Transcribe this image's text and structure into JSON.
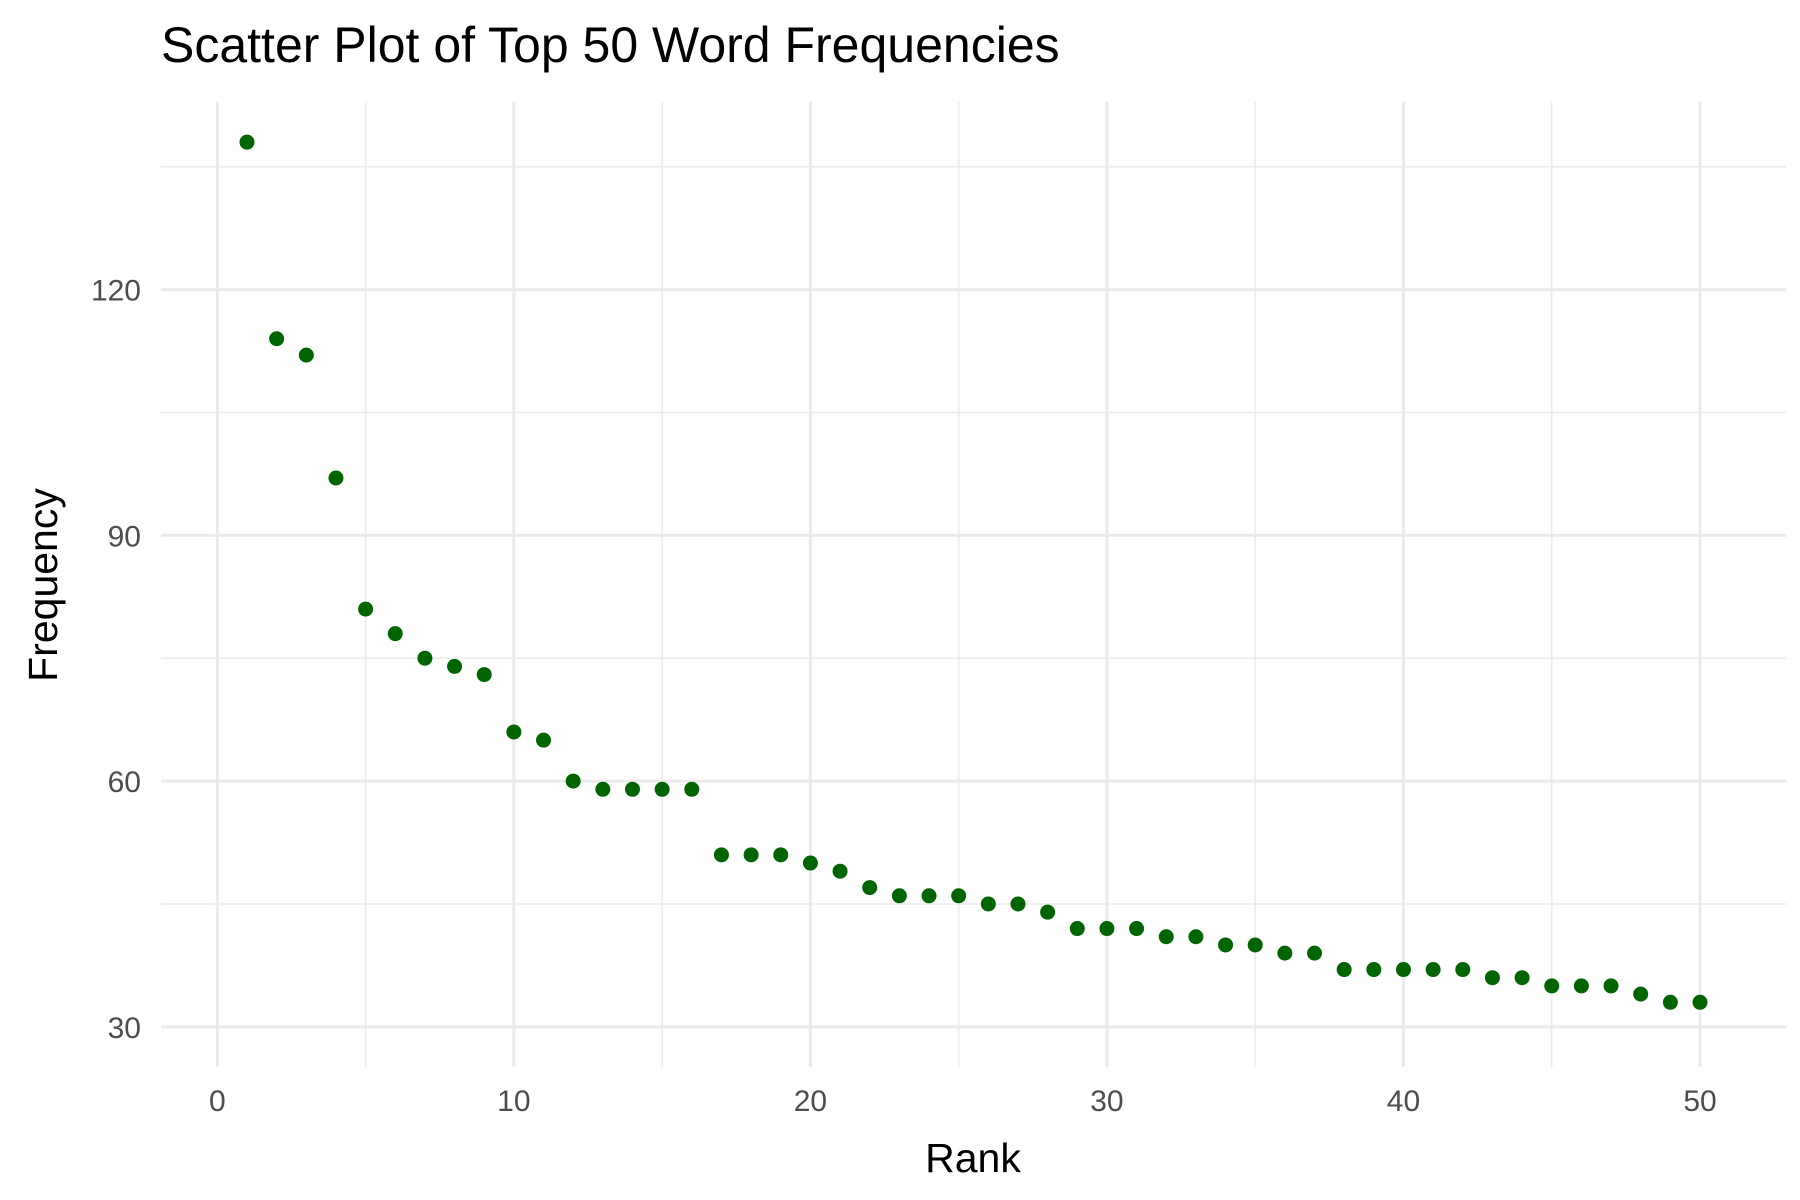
{
  "chart_data": {
    "type": "scatter",
    "title": "Scatter Plot of Top 50 Word Frequencies",
    "xlabel": "Rank",
    "ylabel": "Frequency",
    "x_ticks": [
      0,
      10,
      20,
      30,
      40,
      50
    ],
    "y_ticks": [
      30,
      60,
      90,
      120
    ],
    "xlim": [
      -1.9,
      52.9
    ],
    "ylim": [
      25.1,
      142.9
    ],
    "grid": true,
    "point_color": "#006400",
    "grid_color": "#ebebeb",
    "tick_label_color": "#4d4d4d",
    "series": [
      {
        "x": [
          1,
          2,
          3,
          4,
          5,
          6,
          7,
          8,
          9,
          10,
          11,
          12,
          13,
          14,
          15,
          16,
          17,
          18,
          19,
          20,
          21,
          22,
          23,
          24,
          25,
          26,
          27,
          28,
          29,
          30,
          31,
          32,
          33,
          34,
          35,
          36,
          37,
          38,
          39,
          40,
          41,
          42,
          43,
          44,
          45,
          46,
          47,
          48,
          49,
          50
        ],
        "y": [
          138,
          114,
          112,
          97,
          81,
          78,
          75,
          74,
          73,
          66,
          65,
          60,
          59,
          59,
          59,
          59,
          51,
          51,
          51,
          50,
          49,
          47,
          46,
          46,
          46,
          45,
          45,
          44,
          42,
          42,
          42,
          41,
          41,
          40,
          40,
          39,
          39,
          37,
          37,
          37,
          37,
          37,
          36,
          36,
          35,
          35,
          35,
          34,
          33,
          33
        ]
      }
    ]
  }
}
